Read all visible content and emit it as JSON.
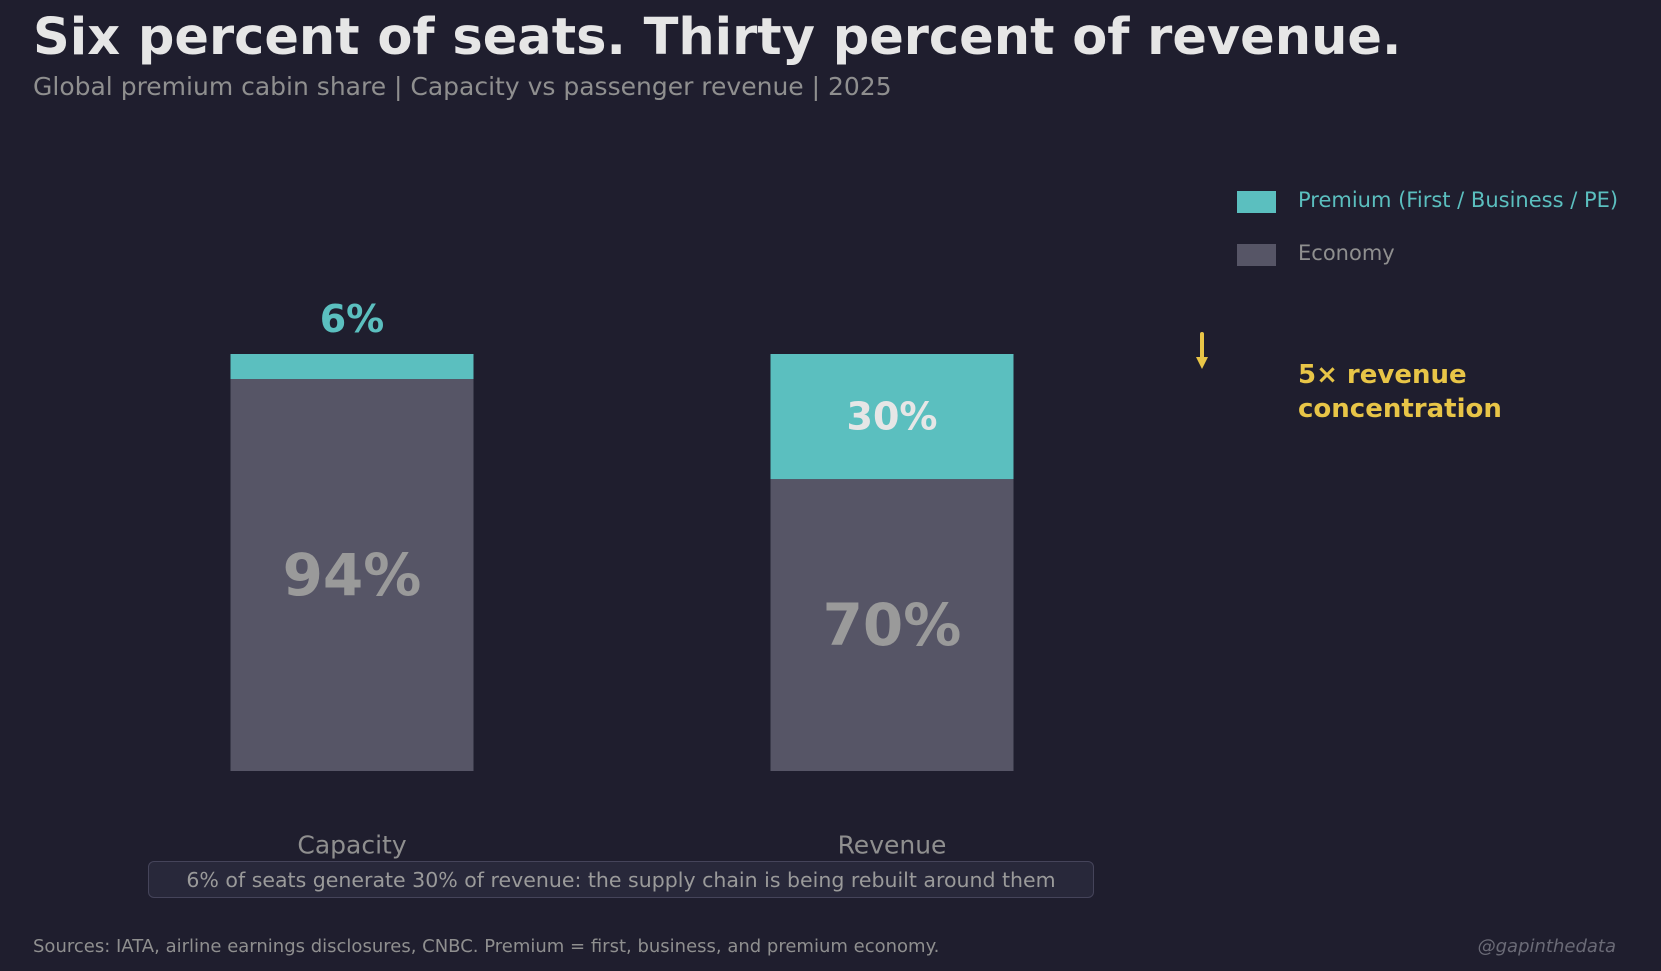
{
  "title": "Six percent of seats. Thirty percent of revenue.",
  "subtitle": "Global premium cabin share  |  Capacity vs passenger revenue  |  2025",
  "colors": {
    "background": "#1f1e2e",
    "premium": "#5bbfbf",
    "economy": "#565566",
    "annotation": "#e8c547"
  },
  "chart_data": {
    "type": "bar",
    "stacked": true,
    "categories": [
      "Capacity",
      "Revenue"
    ],
    "series": [
      {
        "name": "Economy",
        "values": [
          94,
          70
        ],
        "labels": [
          "94%",
          "70%"
        ],
        "color": "#565566"
      },
      {
        "name": "Premium (First / Business / PE)",
        "values": [
          6,
          30
        ],
        "labels": [
          "6%",
          "30%"
        ],
        "color": "#5bbfbf"
      }
    ],
    "ylim": [
      0,
      100
    ],
    "grid": false,
    "legend": "top-right",
    "annotation": {
      "icon": "arrow-down-icon",
      "lines": [
        "5× revenue",
        "concentration"
      ]
    }
  },
  "callout": "6% of seats generate 30% of revenue: the supply chain is being rebuilt around them",
  "footer": {
    "sources": "Sources: IATA, airline earnings disclosures, CNBC. Premium = first, business, and premium economy.",
    "handle": "@gapinthedata"
  }
}
